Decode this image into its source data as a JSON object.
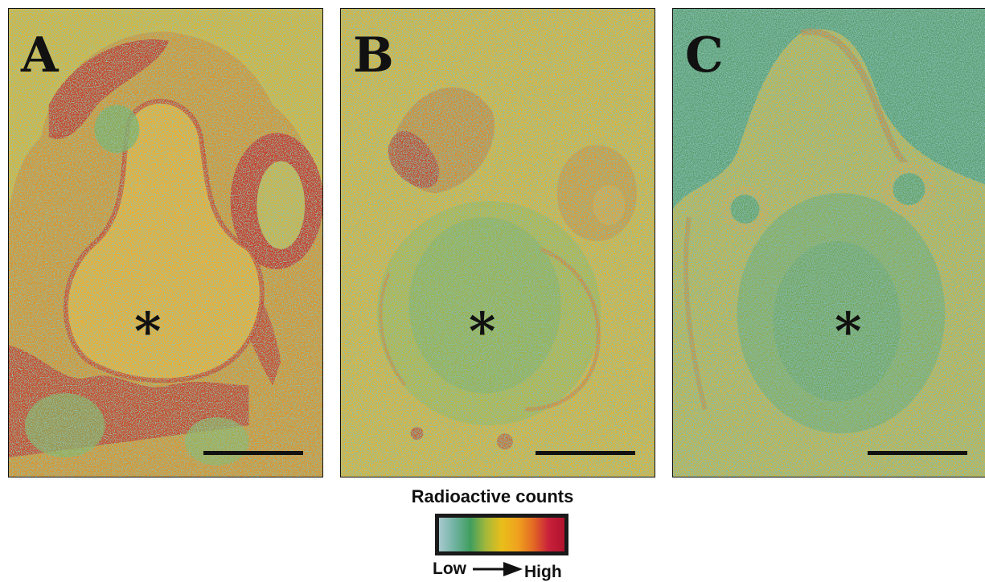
{
  "panels": [
    {
      "label": "A",
      "marker": "*",
      "tint": "#eda92a",
      "activity": "high"
    },
    {
      "label": "B",
      "marker": "*",
      "tint": "#e9b734",
      "activity": "medium"
    },
    {
      "label": "C",
      "marker": "*",
      "tint": "#dcb63a",
      "activity": "low"
    }
  ],
  "legend": {
    "title": "Radioactive counts",
    "low_label": "Low",
    "high_label": "High",
    "colors": [
      "#a9c9cf",
      "#6fb2a0",
      "#3f9e5e",
      "#a5b83a",
      "#e9be1a",
      "#f0a31e",
      "#e46a24",
      "#c8203a",
      "#b0132e"
    ]
  },
  "palette": {
    "background_green": "#4f9d72",
    "tissue_yellow": "#ebb52c",
    "tissue_red": "#c8382a"
  }
}
